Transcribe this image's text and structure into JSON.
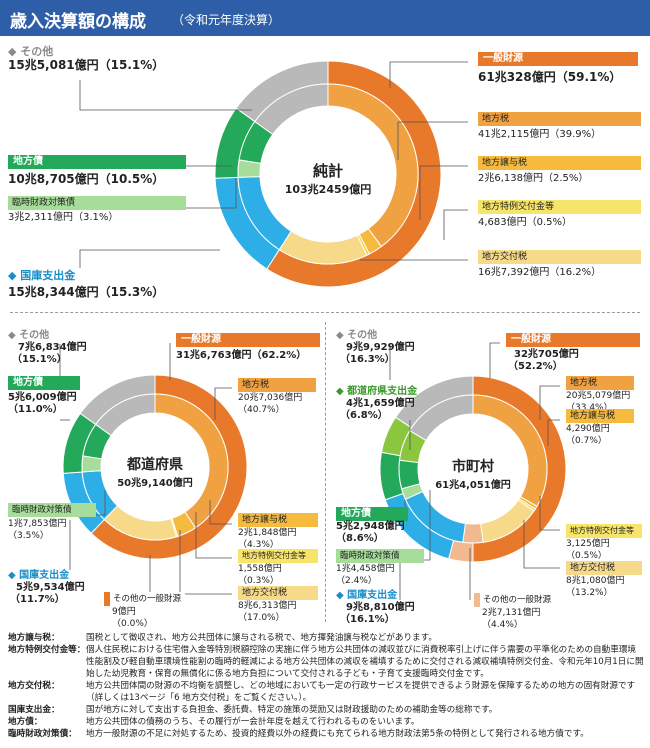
{
  "header": {
    "title": "歳入決算額の構成",
    "subtitle": "（令和元年度決算）"
  },
  "chart_data": [
    {
      "type": "pie",
      "name": "total",
      "center_title": "純計",
      "center_value": "103兆2459億円",
      "outer": [
        {
          "label": "一般財源",
          "amount": "61兆328億円",
          "pct": 59.1,
          "color": "#e8782a"
        },
        {
          "label": "国庫支出金",
          "amount": "15兆8,344億円",
          "pct": 15.3,
          "color": "#2eaee6"
        },
        {
          "label": "地方債",
          "amount": "10兆8,705億円",
          "pct": 10.5,
          "color": "#24a85a"
        },
        {
          "label": "その他",
          "amount": "15兆5,081億円",
          "pct": 15.1,
          "color": "#b9b9b9"
        }
      ],
      "inner": [
        {
          "label": "地方税",
          "amount": "41兆2,115億円",
          "pct": 39.9,
          "color": "#f0a142"
        },
        {
          "label": "地方譲与税",
          "amount": "2兆6,138億円",
          "pct": 2.5,
          "color": "#f5ba3e"
        },
        {
          "label": "地方特例交付金等",
          "amount": "4,683億円",
          "pct": 0.5,
          "color": "#f7d33a"
        },
        {
          "label": "地方交付税",
          "amount": "16兆7,392億円",
          "pct": 16.2,
          "color": "#f7d98a"
        },
        {
          "label": "国庫支出金",
          "amount": "",
          "pct": 15.3,
          "color": "#2eaee6"
        },
        {
          "label": "臨時財政対策債",
          "amount": "3兆2,311億円",
          "pct": 3.1,
          "color": "#a7dd9a"
        },
        {
          "label": "地方債(その他)",
          "amount": "",
          "pct": 7.4,
          "color": "#24a85a"
        },
        {
          "label": "その他",
          "amount": "",
          "pct": 15.1,
          "color": "#b9b9b9"
        }
      ]
    },
    {
      "type": "pie",
      "name": "prefecture",
      "center_title": "都道府県",
      "center_value": "50兆9,140億円",
      "outer": [
        {
          "label": "一般財源",
          "amount": "31兆6,763億円",
          "pct": 62.2,
          "color": "#e8782a"
        },
        {
          "label": "その他の一般財源",
          "amount": "9億円",
          "pct": 0.0,
          "color": "#e8782a"
        },
        {
          "label": "国庫支出金",
          "amount": "5兆9,534億円",
          "pct": 11.7,
          "color": "#2eaee6"
        },
        {
          "label": "地方債",
          "amount": "5兆6,009億円",
          "pct": 11.0,
          "color": "#24a85a"
        },
        {
          "label": "その他",
          "amount": "7兆6,834億円",
          "pct": 15.1,
          "color": "#b9b9b9"
        }
      ],
      "inner": [
        {
          "label": "地方税",
          "amount": "20兆7,036億円",
          "pct": 40.7,
          "color": "#f0a142"
        },
        {
          "label": "地方譲与税",
          "amount": "2兆1,848億円",
          "pct": 4.3,
          "color": "#f5ba3e"
        },
        {
          "label": "地方特例交付金等",
          "amount": "1,558億円",
          "pct": 0.3,
          "color": "#f7d33a"
        },
        {
          "label": "地方交付税",
          "amount": "8兆6,313億円",
          "pct": 17.0,
          "color": "#f7d98a"
        },
        {
          "label": "国庫支出金",
          "amount": "",
          "pct": 11.7,
          "color": "#2eaee6"
        },
        {
          "label": "臨時財政対策債",
          "amount": "1兆7,853億円",
          "pct": 3.5,
          "color": "#a7dd9a"
        },
        {
          "label": "地方債(その他)",
          "amount": "",
          "pct": 7.5,
          "color": "#24a85a"
        },
        {
          "label": "その他",
          "amount": "",
          "pct": 15.1,
          "color": "#b9b9b9"
        }
      ]
    },
    {
      "type": "pie",
      "name": "municipality",
      "center_title": "市町村",
      "center_value": "61兆4,051億円",
      "outer": [
        {
          "label": "一般財源",
          "amount": "32兆705億円",
          "pct": 52.2,
          "color": "#e8782a"
        },
        {
          "label": "その他の一般財源",
          "amount": "2兆7,131億円",
          "pct": 4.4,
          "color": "#f2b890"
        },
        {
          "label": "国庫支出金",
          "amount": "9兆8,810億円",
          "pct": 16.1,
          "color": "#2eaee6"
        },
        {
          "label": "地方債",
          "amount": "5兆2,948億円",
          "pct": 8.6,
          "color": "#24a85a"
        },
        {
          "label": "都道府県支出金",
          "amount": "4兆1,659億円",
          "pct": 6.8,
          "color": "#8cc63f"
        },
        {
          "label": "その他",
          "amount": "9兆9,929億円",
          "pct": 16.3,
          "color": "#b9b9b9"
        }
      ],
      "inner": [
        {
          "label": "地方税",
          "amount": "20兆5,079億円",
          "pct": 33.4,
          "color": "#f0a142"
        },
        {
          "label": "地方譲与税",
          "amount": "4,290億円",
          "pct": 0.7,
          "color": "#f5ba3e"
        },
        {
          "label": "地方特例交付金等",
          "amount": "3,125億円",
          "pct": 0.5,
          "color": "#f7d33a"
        },
        {
          "label": "地方交付税",
          "amount": "8兆1,080億円",
          "pct": 13.2,
          "color": "#f7d98a"
        },
        {
          "label": "その他の一般財源",
          "amount": "",
          "pct": 4.4,
          "color": "#f2b890"
        },
        {
          "label": "国庫支出金",
          "amount": "",
          "pct": 16.1,
          "color": "#2eaee6"
        },
        {
          "label": "臨時財政対策債",
          "amount": "1兆4,458億円",
          "pct": 2.4,
          "color": "#a7dd9a"
        },
        {
          "label": "地方債(その他)",
          "amount": "",
          "pct": 6.2,
          "color": "#24a85a"
        },
        {
          "label": "都道府県支出金",
          "amount": "",
          "pct": 6.8,
          "color": "#8cc63f"
        },
        {
          "label": "その他",
          "amount": "",
          "pct": 16.3,
          "color": "#b9b9b9"
        }
      ]
    }
  ],
  "labels": {
    "total": {
      "other": {
        "name": "その他",
        "value": "15兆5,081億円（15.1%）"
      },
      "bond": {
        "name": "地方債",
        "value": "10兆8,705億円（10.5%）"
      },
      "rinji": {
        "name": "臨時財政対策債",
        "value": "3兆2,311億円（3.1%）"
      },
      "kokko": {
        "name": "国庫支出金",
        "value": "15兆8,344億円（15.3%）"
      },
      "general": {
        "name": "一般財源",
        "value": "61兆328億円（59.1%）"
      },
      "tax": {
        "name": "地方税",
        "value": "41兆2,115億円（39.9%）"
      },
      "joyo": {
        "name": "地方譲与税",
        "value": "2兆6,138億円（2.5%）"
      },
      "tokurei": {
        "name": "地方特例交付金等",
        "value": "4,683億円（0.5%）"
      },
      "kofu": {
        "name": "地方交付税",
        "value": "16兆7,392億円（16.2%）"
      }
    },
    "pref": {
      "other": {
        "name": "その他",
        "value1": "7兆6,834億円",
        "value2": "（15.1%）"
      },
      "bond": {
        "name": "地方債",
        "value1": "5兆6,009億円",
        "value2": "（11.0%）"
      },
      "rinji": {
        "name": "臨時財政対策債",
        "value1": "1兆7,853億円",
        "value2": "（3.5%）"
      },
      "kokko": {
        "name": "国庫支出金",
        "value1": "5兆9,534億円",
        "value2": "（11.7%）"
      },
      "general": {
        "name": "一般財源",
        "value": "31兆6,763億円（62.2%）"
      },
      "tax": {
        "name": "地方税",
        "value1": "20兆7,036億円",
        "value2": "（40.7%）"
      },
      "joyo": {
        "name": "地方譲与税",
        "value1": "2兆1,848億円",
        "value2": "（4.3%）"
      },
      "tokurei": {
        "name": "地方特例交付金等",
        "value1": "1,558億円",
        "value2": "（0.3%）"
      },
      "kofu": {
        "name": "地方交付税",
        "value1": "8兆6,313億円",
        "value2": "（17.0%）"
      },
      "othergen": {
        "name": "その他の一般財源",
        "value1": "9億円",
        "value2": "（0.0%）"
      }
    },
    "muni": {
      "other": {
        "name": "その他",
        "value1": "9兆9,929億円",
        "value2": "（16.3%）"
      },
      "pref_sub": {
        "name": "都道府県支出金",
        "value1": "4兆1,659億円",
        "value2": "（6.8%）"
      },
      "bond": {
        "name": "地方債",
        "value1": "5兆2,948億円",
        "value2": "（8.6%）"
      },
      "rinji": {
        "name": "臨時財政対策債",
        "value1": "1兆4,458億円",
        "value2": "（2.4%）"
      },
      "kokko": {
        "name": "国庫支出金",
        "value1": "9兆8,810億円",
        "value2": "（16.1%）"
      },
      "general": {
        "name": "一般財源",
        "value1": "32兆705億円",
        "value2": "（52.2%）"
      },
      "tax": {
        "name": "地方税",
        "value1": "20兆5,079億円",
        "value2": "（33.4%）"
      },
      "joyo": {
        "name": "地方譲与税",
        "value1": "4,290億円",
        "value2": "（0.7%）"
      },
      "tokurei": {
        "name": "地方特例交付金等",
        "value1": "3,125億円",
        "value2": "（0.5%）"
      },
      "kofu": {
        "name": "地方交付税",
        "value1": "8兆1,080億円",
        "value2": "（13.2%）"
      },
      "othergen": {
        "name": "その他の一般財源",
        "value1": "2兆7,131億円",
        "value2": "（4.4%）"
      }
    }
  },
  "notes": [
    {
      "term": "地方譲与税：",
      "text": "国税として徴収され、地方公共団体に譲与される税で、地方揮発油譲与税などがあります。"
    },
    {
      "term": "地方特例交付金等：",
      "text": "個人住民税における住宅借入金等特別税額控除の実施に伴う地方公共団体の減収並びに消費税率引上げに伴う需要の平準化のための自動車環境性能割及び軽自動車環境性能割の臨時的軽減による地方公共団体の減収を補填するために交付される減収補填特例交付金、令和元年10月1日に開始した幼児教育・保育の無償化に係る地方負担について交付される子ども・子育て支援臨時交付金です。"
    },
    {
      "term": "地方交付税：",
      "text": "地方公共団体間の財源の不均衡を調整し、どの地域においても一定の行政サービスを提供できるよう財源を保障するための地方の固有財源です（詳しくは13ページ「6 地方交付税」をご覧ください。）。"
    },
    {
      "term": "国庫支出金：",
      "text": "国が地方に対して支出する負担金、委託費、特定の施策の奨励又は財政援助のための補助金等の総称です。"
    },
    {
      "term": "地方債：",
      "text": "地方公共団体の債務のうち、その履行が一会計年度を越えて行われるものをいいます。"
    },
    {
      "term": "臨時財政対策債：",
      "text": "地方一般財源の不足に対処するため、投資的経費以外の経費にも充てられる地方財政法第5条の特例として発行される地方債です。"
    }
  ]
}
